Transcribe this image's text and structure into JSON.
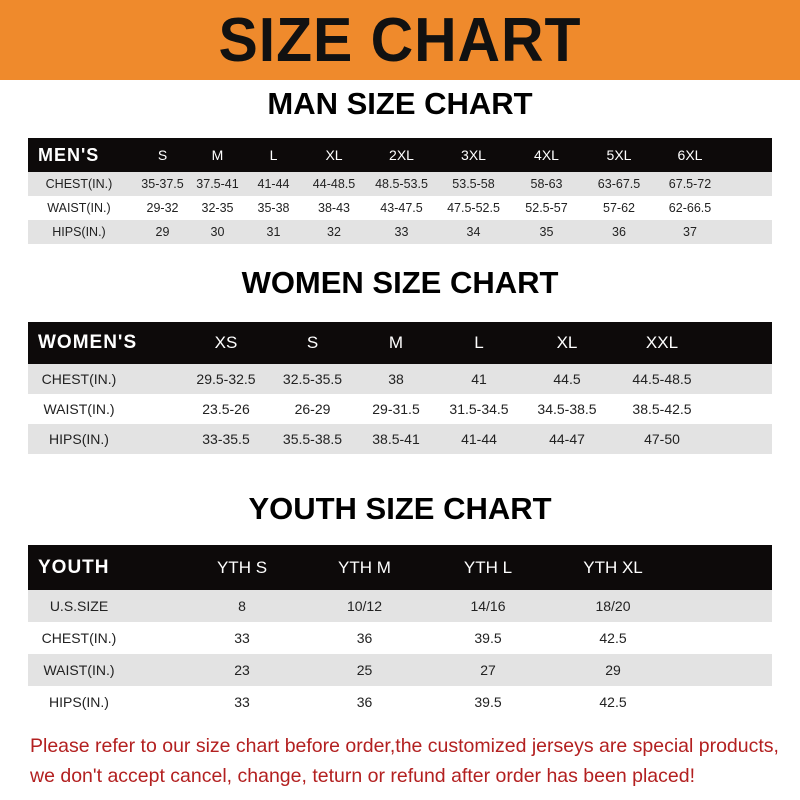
{
  "banner": "SIZE CHART",
  "men": {
    "title": "MAN SIZE CHART",
    "header": [
      "MEN'S",
      "S",
      "M",
      "L",
      "XL",
      "2XL",
      "3XL",
      "4XL",
      "5XL",
      "6XL"
    ],
    "rows": [
      [
        "CHEST(IN.)",
        "35-37.5",
        "37.5-41",
        "41-44",
        "44-48.5",
        "48.5-53.5",
        "53.5-58",
        "58-63",
        "63-67.5",
        "67.5-72"
      ],
      [
        "WAIST(IN.)",
        "29-32",
        "32-35",
        "35-38",
        "38-43",
        "43-47.5",
        "47.5-52.5",
        "52.5-57",
        "57-62",
        "62-66.5"
      ],
      [
        "HIPS(IN.)",
        "29",
        "30",
        "31",
        "32",
        "33",
        "34",
        "35",
        "36",
        "37"
      ]
    ]
  },
  "women": {
    "title": "WOMEN SIZE CHART",
    "header": [
      "WOMEN'S",
      "XS",
      "S",
      "M",
      "L",
      "XL",
      "XXL"
    ],
    "rows": [
      [
        "CHEST(IN.)",
        "29.5-32.5",
        "32.5-35.5",
        "38",
        "41",
        "44.5",
        "44.5-48.5"
      ],
      [
        "WAIST(IN.)",
        "23.5-26",
        "26-29",
        "29-31.5",
        "31.5-34.5",
        "34.5-38.5",
        "38.5-42.5"
      ],
      [
        "HIPS(IN.)",
        "33-35.5",
        "35.5-38.5",
        "38.5-41",
        "41-44",
        "44-47",
        "47-50"
      ]
    ]
  },
  "youth": {
    "title": "YOUTH SIZE CHART",
    "header": [
      "YOUTH",
      "YTH S",
      "YTH M",
      "YTH L",
      "YTH XL"
    ],
    "rows": [
      [
        "U.S.SIZE",
        "8",
        "10/12",
        "14/16",
        "18/20"
      ],
      [
        "CHEST(IN.)",
        "33",
        "36",
        "39.5",
        "42.5"
      ],
      [
        "WAIST(IN.)",
        "23",
        "25",
        "27",
        "29"
      ],
      [
        "HIPS(IN.)",
        "33",
        "36",
        "39.5",
        "42.5"
      ]
    ]
  },
  "notice": {
    "line1": "Please refer to our size chart before order,the customized jerseys are special products,",
    "line2": "we don't accept cancel, change, teturn or refund after order has been placed!"
  },
  "colors": {
    "banner": "#ef8a2c",
    "header_row": "#0d0a0a",
    "stripe": "#e3e3e3",
    "notice": "#b32020"
  }
}
